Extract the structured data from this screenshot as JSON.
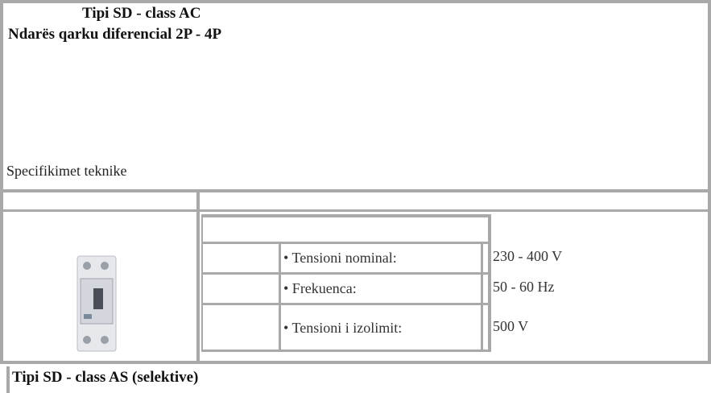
{
  "header": {
    "title": "Tipi SD - class AC",
    "subtitle": "Ndarës qarku diferencial 2P - 4P"
  },
  "section": "Specifikimet teknike",
  "table": {
    "rows": [
      [
        "• Tensioni nominal:",
        "230 - 400 V"
      ],
      [
        "• Frekuenca:",
        "50 - 60 Hz"
      ],
      [
        "• Tensioni i izolimit:",
        "500 V"
      ]
    ]
  },
  "footer": "Tipi SD - class AS (selektive)"
}
